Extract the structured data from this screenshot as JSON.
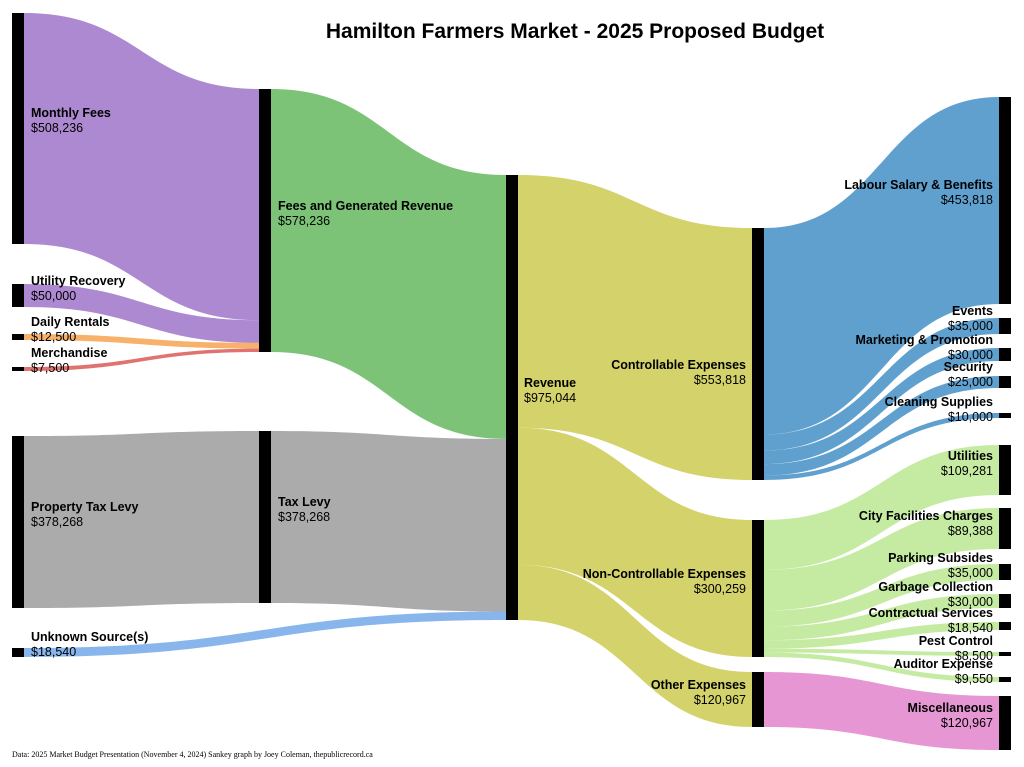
{
  "title": "Hamilton Farmers Market - 2025 Proposed Budget",
  "source": "Data: 2025 Market Budget Presentation (November 4, 2024)  Sankey graph by Joey Coleman, thepublicrecord.ca",
  "chart_data": {
    "type": "sankey",
    "nodes": {
      "monthly_fees": {
        "label": "Monthly Fees",
        "value": "$508,236"
      },
      "utility_recovery": {
        "label": "Utility Recovery",
        "value": "$50,000"
      },
      "daily_rentals": {
        "label": "Daily Rentals",
        "value": "$12,500"
      },
      "merchandise": {
        "label": "Merchandise",
        "value": "$7,500"
      },
      "property_tax_levy": {
        "label": "Property Tax Levy",
        "value": "$378,268"
      },
      "unknown_sources": {
        "label": "Unknown Source(s)",
        "value": "$18,540"
      },
      "fees_generated": {
        "label": "Fees and Generated Revenue",
        "value": "$578,236"
      },
      "tax_levy": {
        "label": "Tax Levy",
        "value": "$378,268"
      },
      "revenue": {
        "label": "Revenue",
        "value": "$975,044"
      },
      "controllable": {
        "label": "Controllable Expenses",
        "value": "$553,818"
      },
      "non_controllable": {
        "label": "Non-Controllable Expenses",
        "value": "$300,259"
      },
      "other_expenses": {
        "label": "Other Expenses",
        "value": "$120,967"
      },
      "labour": {
        "label": "Labour Salary & Benefits",
        "value": "$453,818"
      },
      "events": {
        "label": "Events",
        "value": "$35,000"
      },
      "marketing": {
        "label": "Marketing & Promotion",
        "value": "$30,000"
      },
      "security": {
        "label": "Security",
        "value": "$25,000"
      },
      "cleaning": {
        "label": "Cleaning Supplies",
        "value": "$10,000"
      },
      "utilities": {
        "label": "Utilities",
        "value": "$109,281"
      },
      "city_facilities": {
        "label": "City Facilities Charges",
        "value": "$89,388"
      },
      "parking": {
        "label": "Parking Subsides",
        "value": "$35,000"
      },
      "garbage": {
        "label": "Garbage Collection",
        "value": "$30,000"
      },
      "contractual": {
        "label": "Contractual Services",
        "value": "$18,540"
      },
      "pest_control": {
        "label": "Pest Control",
        "value": "$8,500"
      },
      "auditor": {
        "label": "Auditor Expense",
        "value": "$9,550"
      },
      "miscellaneous": {
        "label": "Miscellaneous",
        "value": "$120,967"
      }
    },
    "links": [
      {
        "source": "monthly_fees",
        "target": "fees_generated",
        "value": 508236,
        "color": "#9b6fc7"
      },
      {
        "source": "utility_recovery",
        "target": "fees_generated",
        "value": 50000,
        "color": "#9b6fc7"
      },
      {
        "source": "daily_rentals",
        "target": "fees_generated",
        "value": 12500,
        "color": "#f5a04a"
      },
      {
        "source": "merchandise",
        "target": "fees_generated",
        "value": 7500,
        "color": "#d9534f"
      },
      {
        "source": "property_tax_levy",
        "target": "tax_levy",
        "value": 378268,
        "color": "#999999"
      },
      {
        "source": "fees_generated",
        "target": "revenue",
        "value": 578236,
        "color": "#5fb65a"
      },
      {
        "source": "tax_levy",
        "target": "revenue",
        "value": 378268,
        "color": "#999999"
      },
      {
        "source": "unknown_sources",
        "target": "revenue",
        "value": 18540,
        "color": "#6ea6e8"
      },
      {
        "source": "revenue",
        "target": "controllable",
        "value": 553818,
        "color": "#c9c84a"
      },
      {
        "source": "revenue",
        "target": "non_controllable",
        "value": 300259,
        "color": "#c9c84a"
      },
      {
        "source": "revenue",
        "target": "other_expenses",
        "value": 120967,
        "color": "#c9c84a"
      },
      {
        "source": "controllable",
        "target": "labour",
        "value": 453818,
        "color": "#3d8bc4"
      },
      {
        "source": "controllable",
        "target": "events",
        "value": 35000,
        "color": "#3d8bc4"
      },
      {
        "source": "controllable",
        "target": "marketing",
        "value": 30000,
        "color": "#3d8bc4"
      },
      {
        "source": "controllable",
        "target": "security",
        "value": 25000,
        "color": "#3d8bc4"
      },
      {
        "source": "controllable",
        "target": "cleaning",
        "value": 10000,
        "color": "#3d8bc4"
      },
      {
        "source": "non_controllable",
        "target": "utilities",
        "value": 109281,
        "color": "#b8e68e"
      },
      {
        "source": "non_controllable",
        "target": "city_facilities",
        "value": 89388,
        "color": "#b8e68e"
      },
      {
        "source": "non_controllable",
        "target": "parking",
        "value": 35000,
        "color": "#b8e68e"
      },
      {
        "source": "non_controllable",
        "target": "garbage",
        "value": 30000,
        "color": "#b8e68e"
      },
      {
        "source": "non_controllable",
        "target": "contractual",
        "value": 18540,
        "color": "#b8e68e"
      },
      {
        "source": "non_controllable",
        "target": "pest_control",
        "value": 8500,
        "color": "#b8e68e"
      },
      {
        "source": "non_controllable",
        "target": "auditor",
        "value": 9550,
        "color": "#b8e68e"
      },
      {
        "source": "other_expenses",
        "target": "miscellaneous",
        "value": 120967,
        "color": "#e07fc9"
      }
    ]
  }
}
